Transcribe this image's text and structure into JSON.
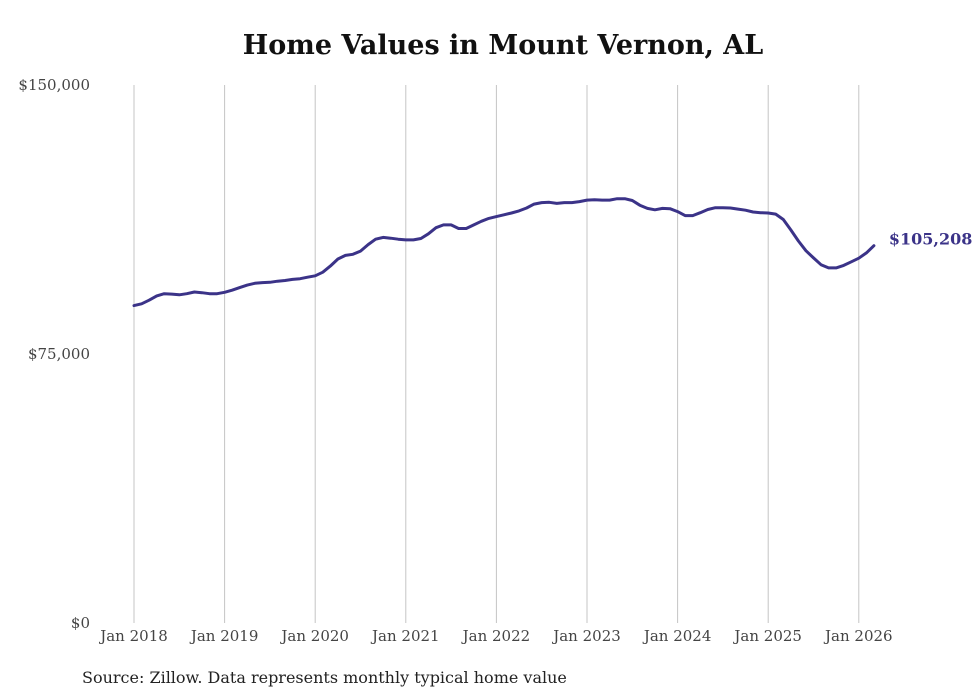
{
  "chart_data": {
    "type": "line",
    "title": "Home Values in Mount Vernon, AL",
    "xlabel": "",
    "ylabel": "",
    "ylim": [
      0,
      150000
    ],
    "y_ticks": [
      "$0",
      "$75,000",
      "$150,000"
    ],
    "x_ticks": [
      "Jan 2018",
      "Jan 2019",
      "Jan 2020",
      "Jan 2021",
      "Jan 2022",
      "Jan 2023",
      "Jan 2024",
      "Jan 2025",
      "Jan 2026"
    ],
    "grid": "vertical",
    "line_color": "#3b3388",
    "end_label": "$105,208",
    "series": [
      {
        "x": [
          "2018-01",
          "2018-02",
          "2018-03",
          "2018-04",
          "2018-05",
          "2018-06",
          "2018-07",
          "2018-08",
          "2018-09",
          "2018-10",
          "2018-11",
          "2018-12",
          "2019-01",
          "2019-02",
          "2019-03",
          "2019-04",
          "2019-05",
          "2019-06",
          "2019-07",
          "2019-08",
          "2019-09",
          "2019-10",
          "2019-11",
          "2019-12",
          "2020-01",
          "2020-02",
          "2020-03",
          "2020-04",
          "2020-05",
          "2020-06",
          "2020-07",
          "2020-08",
          "2020-09",
          "2020-10",
          "2020-11",
          "2020-12",
          "2021-01",
          "2021-02",
          "2021-03",
          "2021-04",
          "2021-05",
          "2021-06",
          "2021-07",
          "2021-08",
          "2021-09",
          "2021-10",
          "2021-11",
          "2021-12",
          "2022-01",
          "2022-02",
          "2022-03",
          "2022-04",
          "2022-05",
          "2022-06",
          "2022-07",
          "2022-08",
          "2022-09",
          "2022-10",
          "2022-11",
          "2022-12",
          "2023-01",
          "2023-02",
          "2023-03",
          "2023-04",
          "2023-05",
          "2023-06",
          "2023-07",
          "2023-08",
          "2023-09",
          "2023-10",
          "2023-11",
          "2023-12",
          "2024-01",
          "2024-02",
          "2024-03",
          "2024-04",
          "2024-05",
          "2024-06",
          "2024-07",
          "2024-08",
          "2024-09",
          "2024-10",
          "2024-11",
          "2024-12",
          "2025-01",
          "2025-02",
          "2025-03",
          "2025-04",
          "2025-05",
          "2025-06",
          "2025-07",
          "2025-08",
          "2025-09",
          "2025-10",
          "2025-11",
          "2025-12",
          "2026-01",
          "2026-02",
          "2026-03"
        ],
        "values": [
          88500,
          89000,
          90000,
          91200,
          91800,
          91700,
          91500,
          91800,
          92300,
          92100,
          91800,
          91800,
          92200,
          92800,
          93500,
          94200,
          94700,
          94900,
          95000,
          95300,
          95500,
          95800,
          96000,
          96400,
          96800,
          97800,
          99500,
          101500,
          102500,
          102800,
          103700,
          105500,
          107000,
          107500,
          107300,
          107000,
          106800,
          106800,
          107200,
          108500,
          110200,
          111000,
          111000,
          110000,
          110000,
          111000,
          112000,
          112800,
          113300,
          113800,
          114300,
          114900,
          115700,
          116800,
          117200,
          117300,
          117000,
          117200,
          117200,
          117500,
          117900,
          118000,
          117900,
          117900,
          118300,
          118300,
          117800,
          116500,
          115600,
          115200,
          115600,
          115500,
          114700,
          113600,
          113600,
          114400,
          115300,
          115800,
          115800,
          115700,
          115400,
          115100,
          114600,
          114400,
          114300,
          114000,
          112500,
          109600,
          106500,
          103800,
          101800,
          99900,
          99000,
          99000,
          99700,
          100700,
          101700,
          103200,
          105208
        ]
      }
    ]
  },
  "footer": {
    "source": "Source: Zillow. Data represents monthly typical home value"
  }
}
